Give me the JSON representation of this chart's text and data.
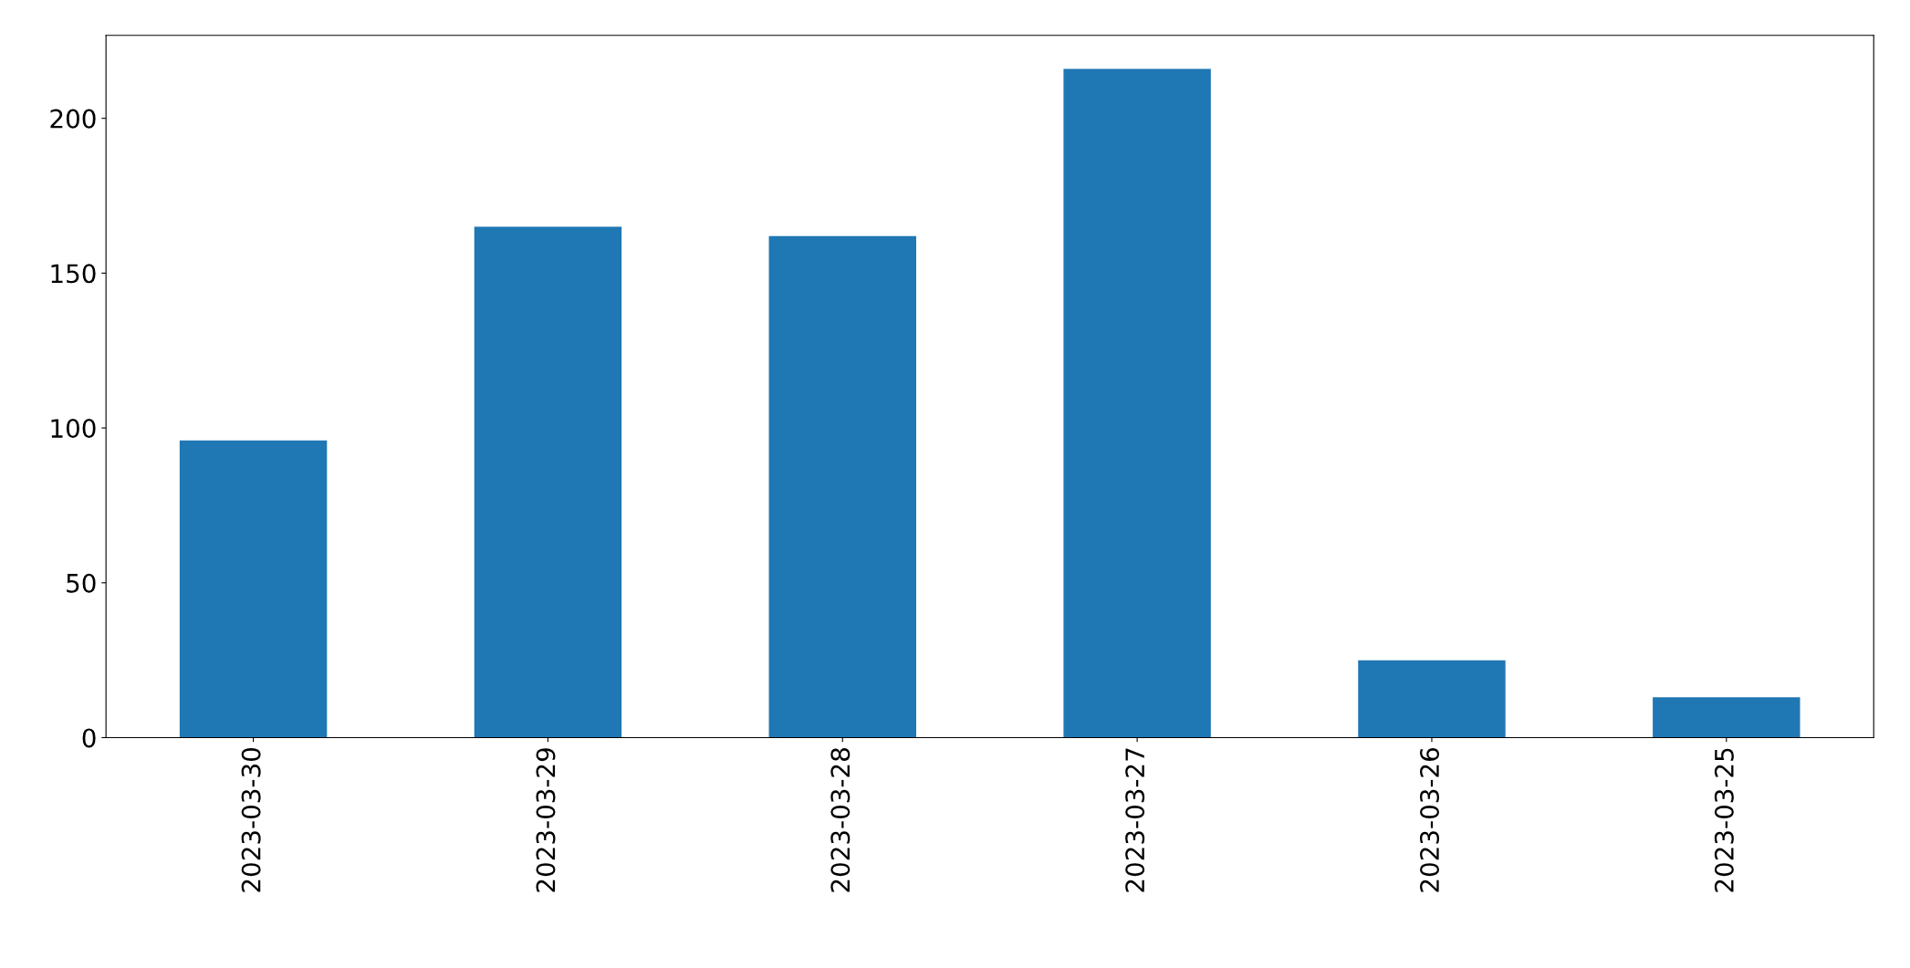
{
  "chart_data": {
    "type": "bar",
    "categories": [
      "2023-03-30",
      "2023-03-29",
      "2023-03-28",
      "2023-03-27",
      "2023-03-26",
      "2023-03-25"
    ],
    "values": [
      96,
      165,
      162,
      216,
      25,
      13
    ],
    "color": "#1f77b4",
    "ylim": [
      0,
      226.8
    ],
    "yticks": [
      0,
      50,
      100,
      150,
      200
    ],
    "grid": false,
    "legend": false
  }
}
